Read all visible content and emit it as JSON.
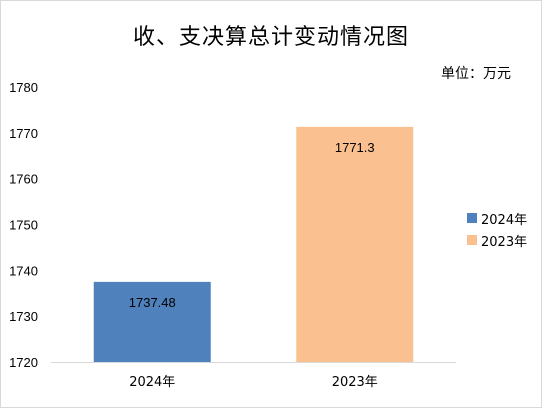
{
  "chart_data": {
    "type": "bar",
    "title": "收、支决算总计变动情况图",
    "unit_label": "单位：万元",
    "categories": [
      "2024年",
      "2023年"
    ],
    "values": [
      1737.48,
      1771.3
    ],
    "value_labels": [
      "1737.48",
      "1771.3"
    ],
    "colors": [
      "#4f81bd",
      "#fac090"
    ],
    "ylim": [
      1720,
      1780
    ],
    "yticks": [
      1720,
      1730,
      1740,
      1750,
      1760,
      1770,
      1780
    ],
    "xlabel": "",
    "ylabel": "",
    "grid": false,
    "legend": {
      "position": "right",
      "entries": [
        {
          "label": "2024年",
          "color": "#4f81bd"
        },
        {
          "label": "2023年",
          "color": "#fac090"
        }
      ]
    }
  }
}
